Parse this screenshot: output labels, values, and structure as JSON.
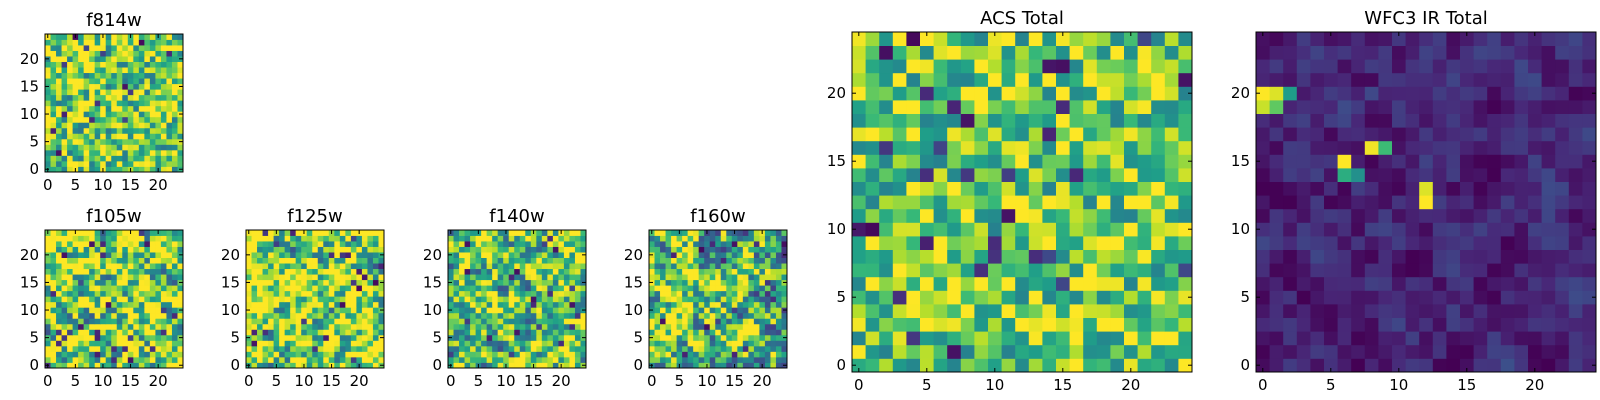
{
  "colormap": "viridis",
  "chart_data": [
    {
      "type": "heatmap",
      "title": "f814w",
      "grid": [
        25,
        25
      ],
      "xlim": [
        -0.5,
        24.5
      ],
      "ylim": [
        -0.5,
        24.5
      ],
      "xticks": [
        0,
        5,
        10,
        15,
        20
      ],
      "yticks": [
        0,
        5,
        10,
        15,
        20
      ],
      "value_range": [
        0,
        1
      ],
      "seed": 11,
      "smooth": 0,
      "bias": 0.78,
      "spread": 0.38
    },
    {
      "type": "heatmap",
      "title": "f105w",
      "grid": [
        25,
        25
      ],
      "xlim": [
        -0.5,
        24.5
      ],
      "ylim": [
        -0.5,
        24.5
      ],
      "xticks": [
        0,
        5,
        10,
        15,
        20
      ],
      "yticks": [
        0,
        5,
        10,
        15,
        20
      ],
      "value_range": [
        0,
        1
      ],
      "seed": 23,
      "smooth": 1,
      "bias": 0.8,
      "spread": 0.55
    },
    {
      "type": "heatmap",
      "title": "f125w",
      "grid": [
        25,
        25
      ],
      "xlim": [
        -0.5,
        24.5
      ],
      "ylim": [
        -0.5,
        24.5
      ],
      "xticks": [
        0,
        5,
        10,
        15,
        20
      ],
      "yticks": [
        0,
        5,
        10,
        15,
        20
      ],
      "value_range": [
        0,
        1
      ],
      "seed": 37,
      "smooth": 1,
      "bias": 0.82,
      "spread": 0.55
    },
    {
      "type": "heatmap",
      "title": "f140w",
      "grid": [
        25,
        25
      ],
      "xlim": [
        -0.5,
        24.5
      ],
      "ylim": [
        -0.5,
        24.5
      ],
      "xticks": [
        0,
        5,
        10,
        15,
        20
      ],
      "yticks": [
        0,
        5,
        10,
        15,
        20
      ],
      "value_range": [
        0,
        1
      ],
      "seed": 41,
      "smooth": 1,
      "bias": 0.74,
      "spread": 0.55
    },
    {
      "type": "heatmap",
      "title": "f160w",
      "grid": [
        25,
        25
      ],
      "xlim": [
        -0.5,
        24.5
      ],
      "ylim": [
        -0.5,
        24.5
      ],
      "xticks": [
        0,
        5,
        10,
        15,
        20
      ],
      "yticks": [
        0,
        5,
        10,
        15,
        20
      ],
      "value_range": [
        0,
        1
      ],
      "seed": 53,
      "smooth": 1,
      "bias": 0.72,
      "spread": 0.6
    },
    {
      "type": "heatmap",
      "title": "ACS Total",
      "grid": [
        25,
        25
      ],
      "xlim": [
        -0.5,
        24.5
      ],
      "ylim": [
        -0.5,
        24.5
      ],
      "xticks": [
        0,
        5,
        10,
        15,
        20
      ],
      "yticks": [
        0,
        5,
        10,
        15,
        20
      ],
      "value_range": [
        0,
        1
      ],
      "seed": 67,
      "smooth": 0,
      "bias": 0.76,
      "spread": 0.32
    },
    {
      "type": "heatmap",
      "title": "WFC3 IR Total",
      "grid": [
        25,
        25
      ],
      "xlim": [
        -0.5,
        24.5
      ],
      "ylim": [
        -0.5,
        24.5
      ],
      "xticks": [
        0,
        5,
        10,
        15,
        20
      ],
      "yticks": [
        0,
        5,
        10,
        15,
        20
      ],
      "value_range": [
        0,
        1
      ],
      "seed": 79,
      "smooth": 1,
      "bias": 0.1,
      "spread": 0.14,
      "hotspots": [
        {
          "x": 0,
          "y": 20,
          "value": 1.0
        },
        {
          "x": 1,
          "y": 20,
          "value": 0.95
        },
        {
          "x": 0,
          "y": 19,
          "value": 0.92
        },
        {
          "x": 1,
          "y": 19,
          "value": 0.75
        },
        {
          "x": 2,
          "y": 20,
          "value": 0.55
        },
        {
          "x": 6,
          "y": 15,
          "value": 1.0
        },
        {
          "x": 6,
          "y": 14,
          "value": 0.62
        },
        {
          "x": 7,
          "y": 14,
          "value": 0.5
        },
        {
          "x": 8,
          "y": 16,
          "value": 0.98
        },
        {
          "x": 9,
          "y": 16,
          "value": 0.68
        },
        {
          "x": 12,
          "y": 12,
          "value": 1.0
        },
        {
          "x": 12,
          "y": 13,
          "value": 0.95
        }
      ]
    }
  ]
}
